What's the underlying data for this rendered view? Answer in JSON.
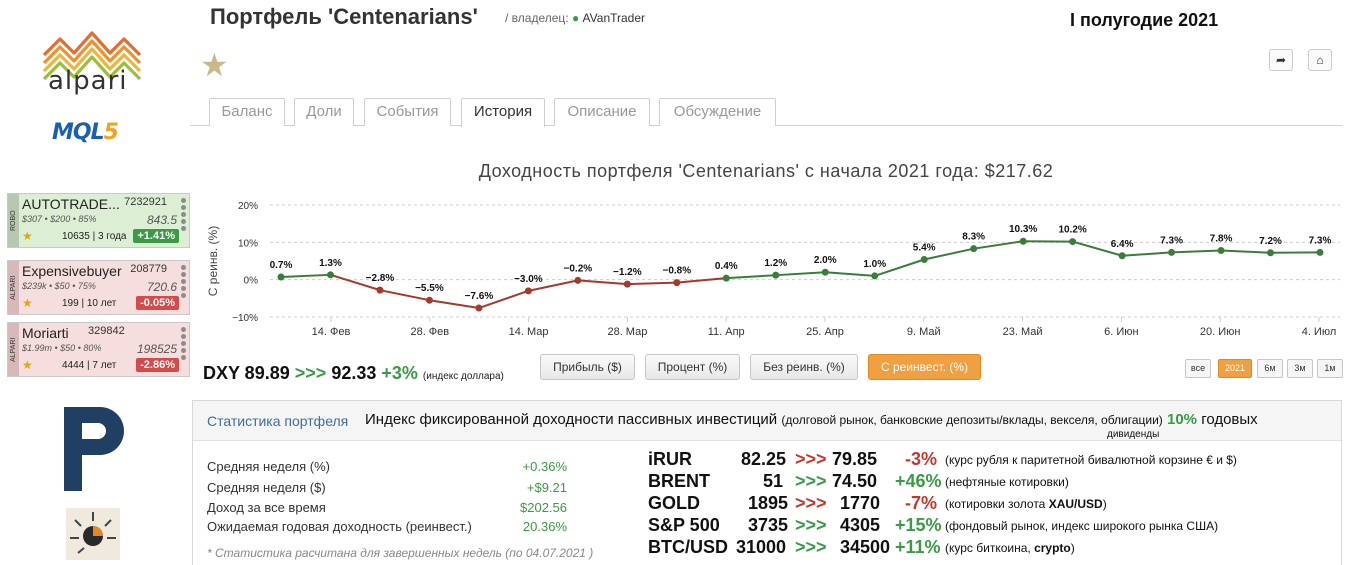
{
  "brand": {
    "alpari": "alpari",
    "mql5_a": "MQL",
    "mql5_b": "5"
  },
  "header": {
    "title": "Портфель 'Centenarians'",
    "owner_prefix": "/ владелец:",
    "owner_name": "AVanTrader",
    "period": "I полугодие 2021"
  },
  "tabs": [
    "Баланс",
    "Доли",
    "События",
    "История",
    "Описание",
    "Обсуждение"
  ],
  "active_tab": "История",
  "signals": [
    {
      "side": "ROBO",
      "name": "AUTOTRADE...",
      "id": "7232921",
      "params": "$307 • $200 • 85%",
      "value": "843.5",
      "subs": "10635 | 3 года",
      "gain": "+1.41%",
      "trend": "pos"
    },
    {
      "side": "ALPARI",
      "name": "Expensivebuyer",
      "id": "208779",
      "params": "$239k • $50 • 75%",
      "value": "720.6",
      "subs": "199 | 10 лет",
      "gain": "-0.05%",
      "trend": "neg"
    },
    {
      "side": "ALPARI",
      "name": "Moriarti",
      "id": "329842",
      "params": "$1.99m • $50 • 80%",
      "value": "198525",
      "subs": "4444 | 7 лет",
      "gain": "-2.86%",
      "trend": "neg"
    }
  ],
  "chart_title": "Доходность портфеля 'Centenarians' с начала 2021 года: $217.62",
  "chart_data": {
    "type": "line",
    "ylabel": "С реинв. (%)",
    "ylim": [
      -10,
      20
    ],
    "yticks": [
      "20%",
      "10%",
      "0%",
      "−10%"
    ],
    "ytick_values": [
      20,
      10,
      0,
      -10
    ],
    "xticks": [
      "14. Фев",
      "28. Фев",
      "14. Мар",
      "28. Мар",
      "11. Апр",
      "25. Апр",
      "9. Май",
      "23. Май",
      "6. Июн",
      "20. Июн",
      "4. Июл"
    ],
    "grid": true,
    "series": [
      {
        "values": [
          0.7,
          1.3,
          -2.8,
          -5.5,
          -7.6,
          -3.0,
          -0.2,
          -1.2,
          -0.8,
          0.4,
          1.2,
          2.0,
          1.0,
          5.4,
          8.3,
          10.3,
          10.2,
          6.4,
          7.3,
          7.8,
          7.2,
          7.3
        ],
        "labels": [
          "0.7%",
          "1.3%",
          "−2.8%",
          "−5.5%",
          "−7.6%",
          "−3.0%",
          "−0.2%",
          "−1.2%",
          "−0.8%",
          "0.4%",
          "1.2%",
          "2.0%",
          "1.0%",
          "5.4%",
          "8.3%",
          "10.3%",
          "10.2%",
          "6.4%",
          "7.3%",
          "7.8%",
          "7.2%",
          "7.3%"
        ]
      }
    ],
    "colors": {
      "positive": "#3a7d3a",
      "negative": "#a33a2a",
      "point": "#3a7d3a"
    }
  },
  "dxy": {
    "label": "DXY 89.89",
    "arrows": ">>>",
    "to": "92.33",
    "chg": "+3%",
    "note": "(индекс доллара)"
  },
  "mode_buttons": [
    "Прибыль ($)",
    "Процент (%)",
    "Без реинв. (%)",
    "С реинвест. (%)"
  ],
  "active_mode": "С реинвест. (%)",
  "range_buttons": [
    "все",
    "2021",
    "6м",
    "3м",
    "1м"
  ],
  "active_range": "2021",
  "stats": {
    "title": "Статистика портфеля",
    "index_main": "Индекс фиксированной доходности пассивных инвестиций",
    "index_small": "(долговой рынок, банковские депозиты/вклады, векселя, облигации)",
    "index_pct": "10%",
    "index_suffix": "годовых",
    "dividends": "дивиденды",
    "rows": [
      {
        "label": "Средняя неделя (%)",
        "value": "+0.36%"
      },
      {
        "label": "Средняя неделя ($)",
        "value": "+$9.21"
      },
      {
        "label": "Доход за все время",
        "value": "$202.56"
      },
      {
        "label": "Ожидаемая годовая доходность (реинвест.)",
        "value": "20.36%"
      }
    ],
    "note": "* Статистика расчитана для завершенных недель (по 04.07.2021 )"
  },
  "quotes": [
    {
      "name": "iRUR",
      "from": "82.25",
      "arrows": ">>>",
      "arrow_color": "red",
      "to": "79.85",
      "chg": "-3%",
      "chg_color": "red",
      "desc": "(курс рубля к паритетной бивалютной корзине € и $)"
    },
    {
      "name": "BRENT",
      "from": "51",
      "arrows": ">>>",
      "arrow_color": "green",
      "to": "74.50",
      "chg": "+46%",
      "chg_color": "green",
      "desc": "(нефтяные котировки)"
    },
    {
      "name": "GOLD",
      "from": "1895",
      "arrows": ">>>",
      "arrow_color": "red",
      "to": "1770",
      "chg": "-7%",
      "chg_color": "red",
      "desc_pre": "(котировки золота ",
      "desc_bold": "XAU/USD",
      "desc_post": ")"
    },
    {
      "name": "S&P 500",
      "from": "3735",
      "arrows": ">>>",
      "arrow_color": "green",
      "to": "4305",
      "chg": "+15%",
      "chg_color": "green",
      "desc": "(фондовый рынок, индекс широкого рынка США)"
    },
    {
      "name": "BTC/USD",
      "from": "31000",
      "arrows": ">>>",
      "arrow_color": "green",
      "to": "34500",
      "chg": "+11%",
      "chg_color": "green",
      "desc_pre": "(курс биткоина, ",
      "desc_bold": "crypto",
      "desc_post": ")"
    }
  ]
}
